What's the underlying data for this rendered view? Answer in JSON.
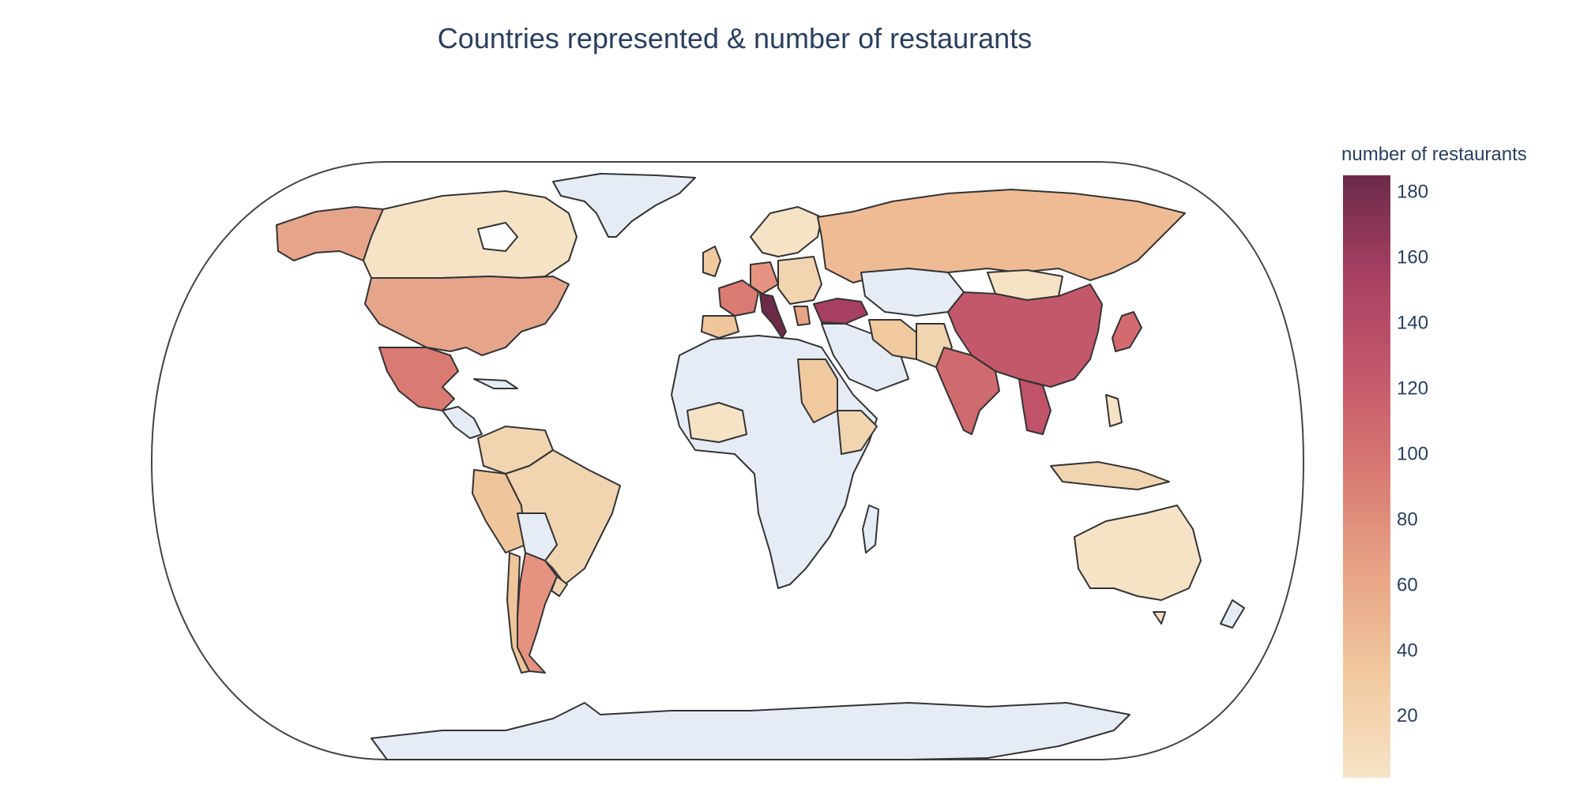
{
  "title": "Countries represented & number of restaurants",
  "colorbar": {
    "title": "number of restaurants",
    "min": 1,
    "max": 185,
    "ticks": [
      20,
      40,
      60,
      80,
      100,
      120,
      140,
      160,
      180
    ],
    "colorscale": [
      "#f6e3c6",
      "#f1c99f",
      "#e8a486",
      "#d97b73",
      "#c4586b",
      "#a63f62",
      "#6b2a48"
    ]
  },
  "no_data_color": "#e5ecf6",
  "chart_data": {
    "type": "choropleth",
    "title": "Countries represented & number of restaurants",
    "colorbar_title": "number of restaurants",
    "range": [
      1,
      185
    ],
    "projection": "natural earth",
    "locations": [
      {
        "country": "Italy",
        "value": 185
      },
      {
        "country": "Turkey",
        "value": 150
      },
      {
        "country": "China",
        "value": 115
      },
      {
        "country": "Thailand",
        "value": 120
      },
      {
        "country": "India",
        "value": 100
      },
      {
        "country": "Japan",
        "value": 95
      },
      {
        "country": "Mexico",
        "value": 80
      },
      {
        "country": "France",
        "value": 78
      },
      {
        "country": "Argentina",
        "value": 65
      },
      {
        "country": "United States",
        "value": 60
      },
      {
        "country": "Germany",
        "value": 55
      },
      {
        "country": "Russia",
        "value": 30
      },
      {
        "country": "Spain",
        "value": 40
      },
      {
        "country": "Greece",
        "value": 45
      },
      {
        "country": "Peru",
        "value": 30
      },
      {
        "country": "Sudan",
        "value": 30
      },
      {
        "country": "Brazil",
        "value": 20
      },
      {
        "country": "Iran",
        "value": 20
      },
      {
        "country": "Canada",
        "value": 8
      },
      {
        "country": "Australia",
        "value": 8
      },
      {
        "country": "Mongolia",
        "value": 8
      }
    ]
  }
}
